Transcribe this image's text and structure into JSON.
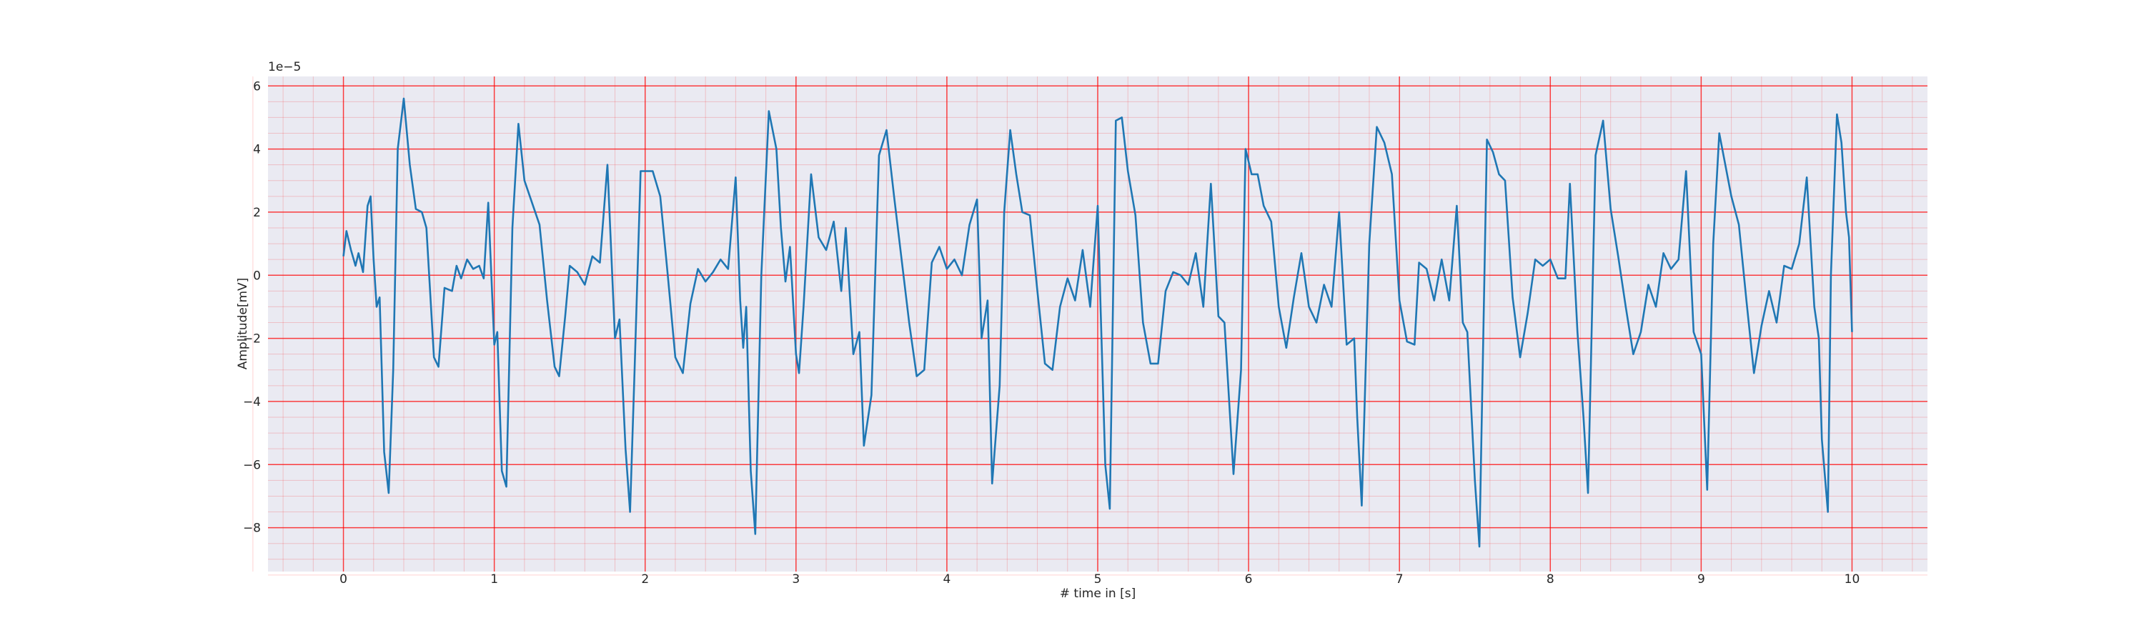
{
  "chart_data": {
    "type": "line",
    "xlabel": "# time in [s]",
    "ylabel": "Amplitude[mV]",
    "y_offset_label": "1e−5",
    "color": "#1f77b4",
    "grid": true,
    "minor_grid": true,
    "grid_color": "#ff0000",
    "background": "#eaeaf2",
    "xlim": [
      -0.5,
      10.5
    ],
    "ylim": [
      -9.39,
      6.3
    ],
    "xticks": [
      0,
      1,
      2,
      3,
      4,
      5,
      6,
      7,
      8,
      9,
      10
    ],
    "yticks": [
      {
        "value": -8,
        "label": "−8"
      },
      {
        "value": -6,
        "label": "−6"
      },
      {
        "value": -4,
        "label": "−4"
      },
      {
        "value": -2,
        "label": "−2"
      },
      0,
      2,
      4,
      6
    ],
    "x": [
      0,
      0.02,
      0.05,
      0.08,
      0.1,
      0.13,
      0.16,
      0.18,
      0.2,
      0.22,
      0.24,
      0.27,
      0.3,
      0.33,
      0.36,
      0.4,
      0.44,
      0.48,
      0.52,
      0.55,
      0.6,
      0.63,
      0.67,
      0.72,
      0.75,
      0.78,
      0.82,
      0.86,
      0.9,
      0.93,
      0.96,
      1.0,
      1.02,
      1.05,
      1.08,
      1.12,
      1.16,
      1.2,
      1.25,
      1.3,
      1.35,
      1.4,
      1.43,
      1.47,
      1.5,
      1.55,
      1.6,
      1.65,
      1.7,
      1.75,
      1.8,
      1.83,
      1.87,
      1.9,
      1.93,
      1.97,
      2.0,
      2.05,
      2.1,
      2.15,
      2.2,
      2.25,
      2.3,
      2.35,
      2.4,
      2.45,
      2.5,
      2.55,
      2.6,
      2.63,
      2.65,
      2.67,
      2.7,
      2.73,
      2.77,
      2.82,
      2.87,
      2.9,
      2.93,
      2.96,
      3.0,
      3.02,
      3.05,
      3.1,
      3.15,
      3.2,
      3.25,
      3.3,
      3.33,
      3.38,
      3.42,
      3.45,
      3.5,
      3.55,
      3.6,
      3.65,
      3.7,
      3.75,
      3.8,
      3.85,
      3.9,
      3.95,
      4.0,
      4.05,
      4.1,
      4.15,
      4.2,
      4.23,
      4.27,
      4.3,
      4.35,
      4.38,
      4.42,
      4.46,
      4.5,
      4.55,
      4.6,
      4.65,
      4.7,
      4.75,
      4.8,
      4.85,
      4.9,
      4.95,
      5.0,
      5.02,
      5.05,
      5.08,
      5.12,
      5.16,
      5.2,
      5.25,
      5.3,
      5.35,
      5.4,
      5.45,
      5.5,
      5.55,
      5.6,
      5.65,
      5.7,
      5.75,
      5.8,
      5.84,
      5.9,
      5.95,
      5.98,
      6.02,
      6.06,
      6.1,
      6.15,
      6.2,
      6.25,
      6.3,
      6.35,
      6.4,
      6.45,
      6.5,
      6.55,
      6.6,
      6.65,
      6.7,
      6.72,
      6.75,
      6.8,
      6.85,
      6.9,
      6.95,
      7.0,
      7.05,
      7.1,
      7.13,
      7.18,
      7.23,
      7.28,
      7.33,
      7.38,
      7.42,
      7.45,
      7.5,
      7.53,
      7.58,
      7.62,
      7.66,
      7.7,
      7.75,
      7.8,
      7.85,
      7.9,
      7.95,
      8.0,
      8.05,
      8.1,
      8.13,
      8.18,
      8.22,
      8.25,
      8.3,
      8.35,
      8.4,
      8.45,
      8.5,
      8.55,
      8.6,
      8.65,
      8.7,
      8.75,
      8.8,
      8.85,
      8.9,
      8.95,
      9.0,
      9.04,
      9.08,
      9.12,
      9.16,
      9.2,
      9.25,
      9.3,
      9.35,
      9.4,
      9.45,
      9.5,
      9.55,
      9.6,
      9.65,
      9.7,
      9.75,
      9.78,
      9.8,
      9.84,
      9.86,
      9.9,
      9.93,
      9.96,
      9.98,
      10.0
    ],
    "values": [
      0.6,
      1.4,
      0.8,
      0.3,
      0.7,
      0.1,
      2.2,
      2.5,
      0.5,
      -1.0,
      -0.7,
      -5.6,
      -6.9,
      -3,
      4,
      5.6,
      3.5,
      2.1,
      2.0,
      1.5,
      -2.6,
      -2.9,
      -0.4,
      -0.5,
      0.3,
      -0.1,
      0.5,
      0.2,
      0.3,
      -0.1,
      2.3,
      -2.2,
      -1.8,
      -6.2,
      -6.7,
      1.5,
      4.8,
      3.0,
      2.3,
      1.6,
      -0.8,
      -2.9,
      -3.2,
      -1.3,
      0.3,
      0.1,
      -0.3,
      0.6,
      0.4,
      3.5,
      -2.0,
      -1.4,
      -5.5,
      -7.5,
      -3.0,
      3.3,
      3.3,
      3.3,
      2.5,
      0,
      -2.6,
      -3.1,
      -0.9,
      0.2,
      -0.2,
      0.1,
      0.5,
      0.2,
      3.1,
      -0.8,
      -2.3,
      -1.0,
      -6.2,
      -8.2,
      0,
      5.2,
      4,
      1.5,
      -0.2,
      0.9,
      -2.5,
      -3.1,
      -1,
      3.2,
      1.2,
      0.8,
      1.7,
      -0.5,
      1.5,
      -2.5,
      -1.8,
      -5.4,
      -3.8,
      3.8,
      4.6,
      2.5,
      0.5,
      -1.5,
      -3.2,
      -3,
      0.4,
      0.9,
      0.2,
      0.5,
      0,
      1.6,
      2.4,
      -2.0,
      -0.8,
      -6.6,
      -3.5,
      2,
      4.6,
      3.2,
      2.0,
      1.9,
      -0.5,
      -2.8,
      -3.0,
      -1.0,
      -0.1,
      -0.8,
      0.8,
      -1.0,
      2.2,
      -1.2,
      -6,
      -7.4,
      4.9,
      5.0,
      3.3,
      1.9,
      -1.5,
      -2.8,
      -2.8,
      -0.5,
      0.1,
      0,
      -0.3,
      0.7,
      -1,
      2.9,
      -1.3,
      -1.5,
      -6.3,
      -3,
      4.0,
      3.2,
      3.2,
      2.2,
      1.7,
      -1.0,
      -2.3,
      -0.7,
      0.7,
      -1,
      -1.5,
      -0.3,
      -1.0,
      2.0,
      -2.2,
      -2,
      -4.5,
      -7.3,
      1,
      4.7,
      4.2,
      3.2,
      -0.8,
      -2.1,
      -2.2,
      0.4,
      0.2,
      -0.8,
      0.5,
      -0.8,
      2.2,
      -1.5,
      -1.8,
      -6.5,
      -8.6,
      4.3,
      3.9,
      3.2,
      3.0,
      -0.7,
      -2.6,
      -1.2,
      0.5,
      0.3,
      0.5,
      -0.1,
      -0.1,
      2.9,
      -1.8,
      -4.5,
      -6.9,
      3.8,
      4.9,
      2.1,
      0.6,
      -1.0,
      -2.5,
      -1.8,
      -0.3,
      -1.0,
      0.7,
      0.2,
      0.5,
      3.3,
      -1.8,
      -2.5,
      -6.8,
      1,
      4.5,
      3.5,
      2.5,
      1.6,
      -0.8,
      -3.1,
      -1.6,
      -0.5,
      -1.5,
      0.3,
      0.2,
      1,
      3.1,
      -1.0,
      -2.0,
      -5.2,
      -7.5,
      0,
      5.1,
      4.2,
      2,
      1.2,
      -1.8
    ]
  }
}
